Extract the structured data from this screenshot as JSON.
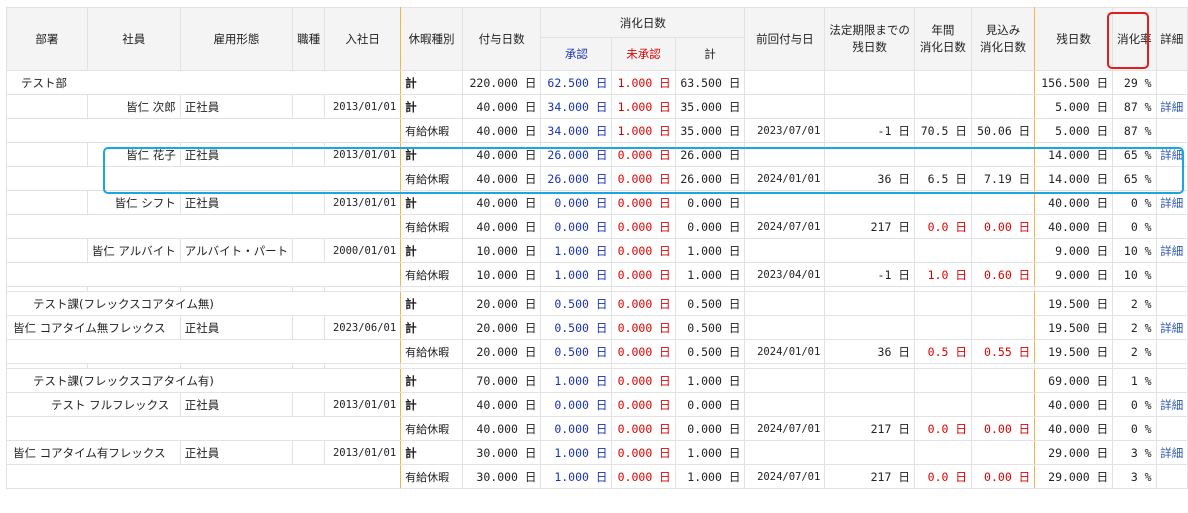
{
  "headers": {
    "dept": "部署",
    "employee": "社員",
    "employment_type": "雇用形態",
    "job_type": "職種",
    "hire_date": "入社日",
    "leave_type": "休暇種別",
    "granted_days": "付与日数",
    "consumed_days": "消化日数",
    "approved": "承認",
    "unapproved": "未承認",
    "total": "計",
    "prev_grant_date": "前回付与日",
    "legal_remaining_l1": "法定期限までの",
    "legal_remaining_l2": "残日数",
    "annual_l1": "年間",
    "annual_l2": "消化日数",
    "forecast_l1": "見込み",
    "forecast_l2": "消化日数",
    "remaining": "残日数",
    "rate": "消化率",
    "detail": "詳細"
  },
  "groups": [
    {
      "name": "テスト部",
      "rows": [
        {
          "dept": "テスト部",
          "employee": "",
          "type": "",
          "job": "",
          "hire": "",
          "leave": "計",
          "granted": "220.000 日",
          "approved": "62.500 日",
          "unapproved": "1.000 日",
          "total": "63.500 日",
          "prev": "",
          "legal": "",
          "annual": "",
          "forecast": "",
          "remaining": "156.500 日",
          "rate": "29 %",
          "detail": ""
        },
        {
          "dept": "",
          "employee": "皆仁 次郎",
          "type": "正社員",
          "job": "",
          "hire": "2013/01/01",
          "leave": "計",
          "granted": "40.000 日",
          "approved": "34.000 日",
          "unapproved": "1.000 日",
          "total": "35.000 日",
          "prev": "",
          "legal": "",
          "annual": "",
          "forecast": "",
          "remaining": "5.000 日",
          "rate": "87 %",
          "detail": "詳細"
        },
        {
          "dept": "",
          "employee": "",
          "type": "",
          "job": "",
          "hire": "",
          "leave": "有給休暇",
          "granted": "40.000 日",
          "approved": "34.000 日",
          "unapproved": "1.000 日",
          "total": "35.000 日",
          "prev": "2023/07/01",
          "legal": "-1 日",
          "annual": "70.5 日",
          "forecast": "50.06 日",
          "remaining": "5.000 日",
          "rate": "87 %",
          "detail": ""
        },
        {
          "dept": "",
          "employee": "皆仁 花子",
          "type": "正社員",
          "job": "",
          "hire": "2013/01/01",
          "leave": "計",
          "granted": "40.000 日",
          "approved": "26.000 日",
          "unapproved": "0.000 日",
          "total": "26.000 日",
          "prev": "",
          "legal": "",
          "annual": "",
          "forecast": "",
          "remaining": "14.000 日",
          "rate": "65 %",
          "detail": "詳細"
        },
        {
          "dept": "",
          "employee": "",
          "type": "",
          "job": "",
          "hire": "",
          "leave": "有給休暇",
          "granted": "40.000 日",
          "approved": "26.000 日",
          "unapproved": "0.000 日",
          "total": "26.000 日",
          "prev": "2024/01/01",
          "legal": "36 日",
          "annual": "6.5 日",
          "forecast": "7.19 日",
          "remaining": "14.000 日",
          "rate": "65 %",
          "detail": ""
        },
        {
          "dept": "",
          "employee": "皆仁 シフト",
          "type": "正社員",
          "job": "",
          "hire": "2013/01/01",
          "leave": "計",
          "granted": "40.000 日",
          "approved": "0.000 日",
          "unapproved": "0.000 日",
          "total": "0.000 日",
          "prev": "",
          "legal": "",
          "annual": "",
          "forecast": "",
          "remaining": "40.000 日",
          "rate": "0 %",
          "detail": "詳細"
        },
        {
          "dept": "",
          "employee": "",
          "type": "",
          "job": "",
          "hire": "",
          "leave": "有給休暇",
          "granted": "40.000 日",
          "approved": "0.000 日",
          "unapproved": "0.000 日",
          "total": "0.000 日",
          "prev": "2024/07/01",
          "legal": "217 日",
          "annual": "0.0 日",
          "forecast": "0.00 日",
          "remaining": "40.000 日",
          "rate": "0 %",
          "detail": ""
        },
        {
          "dept": "",
          "employee": "皆仁 アルバイト",
          "type": "アルバイト・パート",
          "job": "",
          "hire": "2000/01/01",
          "leave": "計",
          "granted": "10.000 日",
          "approved": "1.000 日",
          "unapproved": "0.000 日",
          "total": "1.000 日",
          "prev": "",
          "legal": "",
          "annual": "",
          "forecast": "",
          "remaining": "9.000 日",
          "rate": "10 %",
          "detail": "詳細"
        },
        {
          "dept": "",
          "employee": "",
          "type": "",
          "job": "",
          "hire": "",
          "leave": "有給休暇",
          "granted": "10.000 日",
          "approved": "1.000 日",
          "unapproved": "0.000 日",
          "total": "1.000 日",
          "prev": "2023/04/01",
          "legal": "-1 日",
          "annual": "1.0 日",
          "forecast": "0.60 日",
          "remaining": "9.000 日",
          "rate": "10 %",
          "detail": ""
        }
      ]
    },
    {
      "name": "テスト課(フレックスコアタイム無)",
      "rows": [
        {
          "dept": "テスト課(フレックスコアタイム無)",
          "employee": "",
          "type": "",
          "job": "",
          "hire": "",
          "leave": "計",
          "granted": "20.000 日",
          "approved": "0.500 日",
          "unapproved": "0.000 日",
          "total": "0.500 日",
          "prev": "",
          "legal": "",
          "annual": "",
          "forecast": "",
          "remaining": "19.500 日",
          "rate": "2 %",
          "detail": ""
        },
        {
          "dept": "",
          "employee": "皆仁 コアタイム無フレックス",
          "type": "正社員",
          "job": "",
          "hire": "2023/06/01",
          "leave": "計",
          "granted": "20.000 日",
          "approved": "0.500 日",
          "unapproved": "0.000 日",
          "total": "0.500 日",
          "prev": "",
          "legal": "",
          "annual": "",
          "forecast": "",
          "remaining": "19.500 日",
          "rate": "2 %",
          "detail": "詳細"
        },
        {
          "dept": "",
          "employee": "",
          "type": "",
          "job": "",
          "hire": "",
          "leave": "有給休暇",
          "granted": "20.000 日",
          "approved": "0.500 日",
          "unapproved": "0.000 日",
          "total": "0.500 日",
          "prev": "2024/01/01",
          "legal": "36 日",
          "annual": "0.5 日",
          "forecast": "0.55 日",
          "remaining": "19.500 日",
          "rate": "2 %",
          "detail": ""
        }
      ]
    },
    {
      "name": "テスト課(フレックスコアタイム有)",
      "rows": [
        {
          "dept": "テスト課(フレックスコアタイム有)",
          "employee": "",
          "type": "",
          "job": "",
          "hire": "",
          "leave": "計",
          "granted": "70.000 日",
          "approved": "1.000 日",
          "unapproved": "0.000 日",
          "total": "1.000 日",
          "prev": "",
          "legal": "",
          "annual": "",
          "forecast": "",
          "remaining": "69.000 日",
          "rate": "1 %",
          "detail": ""
        },
        {
          "dept": "",
          "employee": "テスト フルフレックス",
          "type": "正社員",
          "job": "",
          "hire": "2013/01/01",
          "leave": "計",
          "granted": "40.000 日",
          "approved": "0.000 日",
          "unapproved": "0.000 日",
          "total": "0.000 日",
          "prev": "",
          "legal": "",
          "annual": "",
          "forecast": "",
          "remaining": "40.000 日",
          "rate": "0 %",
          "detail": "詳細"
        },
        {
          "dept": "",
          "employee": "",
          "type": "",
          "job": "",
          "hire": "",
          "leave": "有給休暇",
          "granted": "40.000 日",
          "approved": "0.000 日",
          "unapproved": "0.000 日",
          "total": "0.000 日",
          "prev": "2024/07/01",
          "legal": "217 日",
          "annual": "0.0 日",
          "forecast": "0.00 日",
          "remaining": "40.000 日",
          "rate": "0 %",
          "detail": ""
        },
        {
          "dept": "",
          "employee": "皆仁 コアタイム有フレックス",
          "type": "正社員",
          "job": "",
          "hire": "2013/01/01",
          "leave": "計",
          "granted": "30.000 日",
          "approved": "1.000 日",
          "unapproved": "0.000 日",
          "total": "1.000 日",
          "prev": "",
          "legal": "",
          "annual": "",
          "forecast": "",
          "remaining": "29.000 日",
          "rate": "3 %",
          "detail": "詳細"
        },
        {
          "dept": "",
          "employee": "",
          "type": "",
          "job": "",
          "hire": "",
          "leave": "有給休暇",
          "granted": "30.000 日",
          "approved": "1.000 日",
          "unapproved": "0.000 日",
          "total": "1.000 日",
          "prev": "2024/07/01",
          "legal": "217 日",
          "annual": "0.0 日",
          "forecast": "0.00 日",
          "remaining": "29.000 日",
          "rate": "3 %",
          "detail": ""
        }
      ]
    }
  ],
  "colors": {
    "approved": "#1a33b4",
    "unapproved": "#e00000",
    "highlight_row": "#1aa6e2",
    "highlight_col": "#e31c1c",
    "divider": "#f0b64c"
  }
}
